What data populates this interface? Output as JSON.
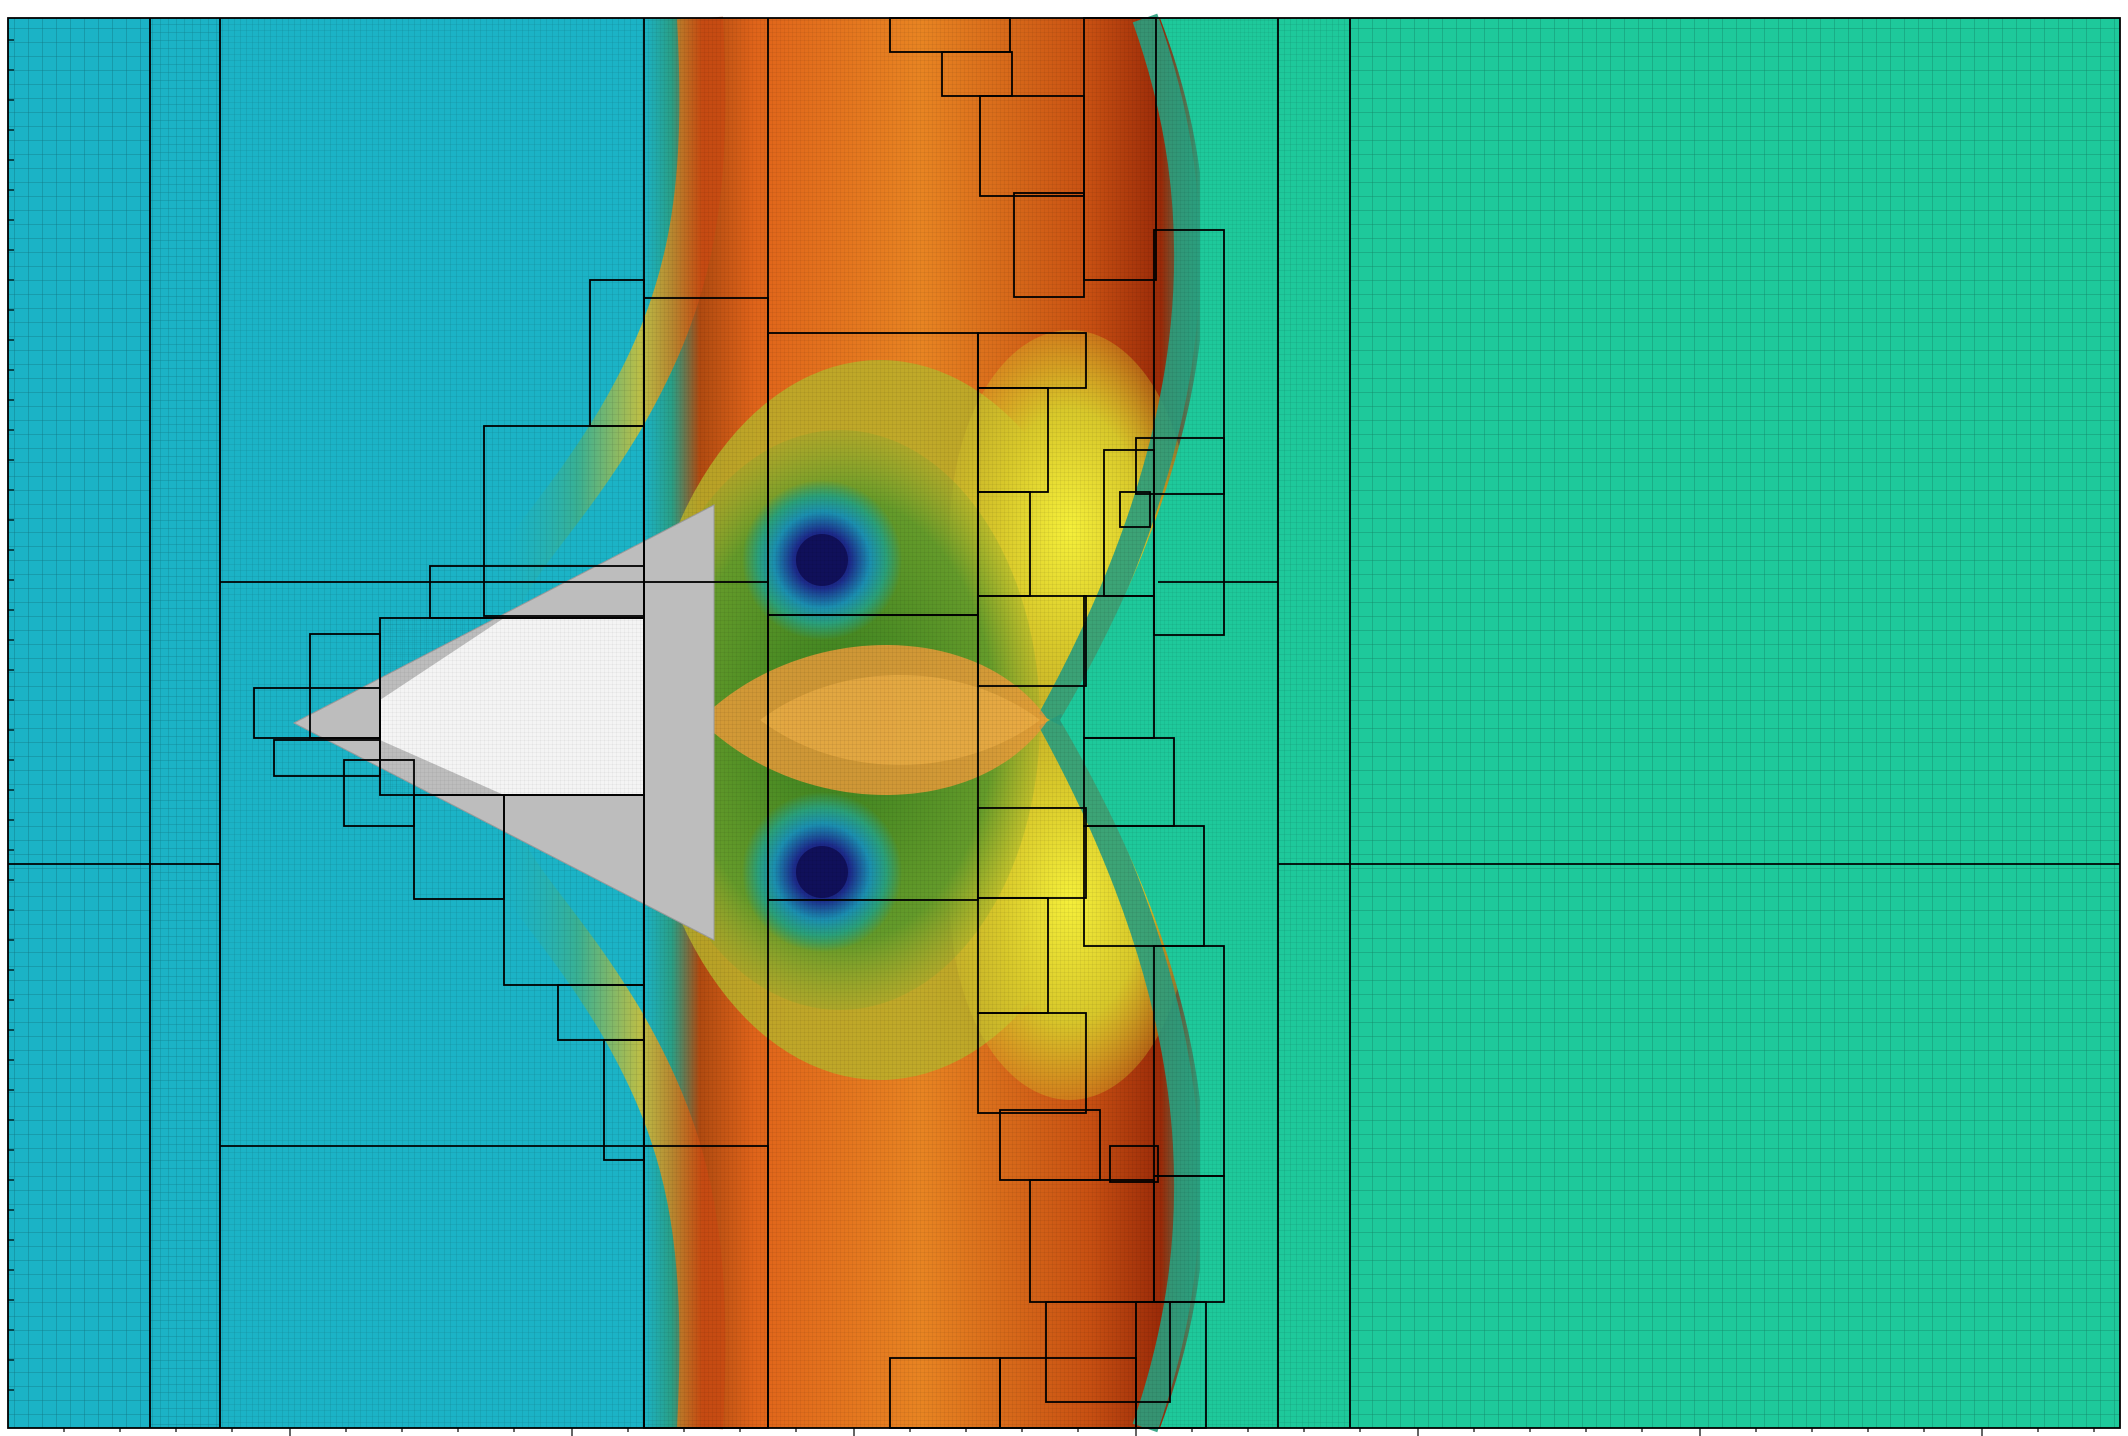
{
  "figure": {
    "kind": "amr-mesh-field",
    "colormap": "jet-like",
    "colors": {
      "freestream_left": "#1bb3c6",
      "freestream_right": "#1ec99b",
      "body_fill": "#bdbdbd",
      "body_inner": "#f2f2f2",
      "vortex_core": "#10105a",
      "hot": "#c0300d",
      "warm": "#e07a1a",
      "yellow": "#e8e030",
      "green": "#3f8f2a",
      "grid_line": "#000000"
    },
    "icons": [
      "delta-wing-body",
      "vortex-core-upper",
      "vortex-core-lower"
    ]
  }
}
